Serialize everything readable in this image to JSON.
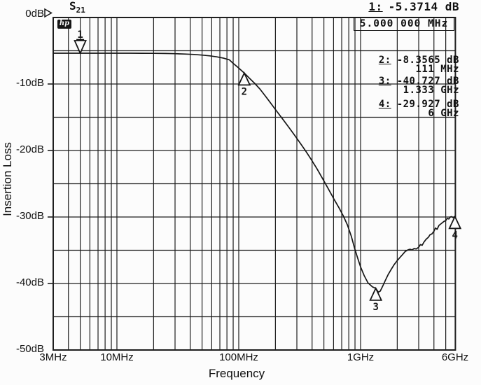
{
  "title": {
    "s_param": "S",
    "s_param_sub": "21"
  },
  "logo_text": "hp",
  "axes": {
    "y_title": "Insertion Loss",
    "x_title": "Frequency",
    "y_ticks": [
      "0dB",
      "-10dB",
      "-20dB",
      "-30dB",
      "-40dB",
      "-50dB"
    ],
    "x_ticks": [
      "3MHz",
      "10MHz",
      "100MHz",
      "1GHz",
      "6GHz"
    ]
  },
  "readout": {
    "active": {
      "id": "1:",
      "value": "-5.3714 dB",
      "stimulus": "5.000 000 MHz"
    },
    "markers": [
      {
        "id": "2:",
        "value": "-8.3565 dB",
        "freq": "111 MHz"
      },
      {
        "id": "3:",
        "value": "-40.727 dB",
        "freq": "1.333 GHz"
      },
      {
        "id": "4:",
        "value": "-29.927 dB",
        "freq": "6 GHz"
      }
    ]
  },
  "chart_data": {
    "type": "line",
    "title": "S21 Insertion Loss vs Frequency",
    "xlabel": "Frequency",
    "ylabel": "Insertion Loss",
    "x_scale": "log",
    "x_range_mhz": [
      3,
      6000
    ],
    "y_range_db": [
      -50,
      0
    ],
    "y_grid_step_db": 5,
    "grid_freqs_mhz": [
      4,
      5,
      6,
      7,
      8,
      9,
      10,
      20,
      30,
      40,
      50,
      60,
      70,
      80,
      90,
      100,
      200,
      300,
      400,
      500,
      600,
      700,
      800,
      900,
      1000,
      2000,
      3000,
      4000,
      5000
    ],
    "grid_levels_db": [
      -5,
      -10,
      -15,
      -20,
      -25,
      -30,
      -35,
      -40,
      -45
    ],
    "labeled_levels_db": [
      -10,
      -20,
      -30,
      -40
    ],
    "series": [
      {
        "name": "S21",
        "points_mhz_db": [
          [
            3,
            -5.37
          ],
          [
            4,
            -5.37
          ],
          [
            5,
            -5.3714
          ],
          [
            6.5,
            -5.37
          ],
          [
            8,
            -5.37
          ],
          [
            10,
            -5.37
          ],
          [
            13,
            -5.37
          ],
          [
            16,
            -5.38
          ],
          [
            20,
            -5.39
          ],
          [
            25,
            -5.41
          ],
          [
            30,
            -5.44
          ],
          [
            36,
            -5.49
          ],
          [
            43,
            -5.56
          ],
          [
            50,
            -5.65
          ],
          [
            58,
            -5.77
          ],
          [
            66,
            -5.92
          ],
          [
            75,
            -6.12
          ],
          [
            84,
            -6.38
          ],
          [
            90,
            -6.9
          ],
          [
            100,
            -7.6
          ],
          [
            111,
            -8.3565
          ],
          [
            122,
            -9.1
          ],
          [
            135,
            -9.9
          ],
          [
            150,
            -10.8
          ],
          [
            167,
            -11.9
          ],
          [
            185,
            -13.0
          ],
          [
            205,
            -14.1
          ],
          [
            230,
            -15.3
          ],
          [
            255,
            -16.4
          ],
          [
            285,
            -17.6
          ],
          [
            320,
            -18.9
          ],
          [
            355,
            -20.1
          ],
          [
            395,
            -21.4
          ],
          [
            440,
            -22.8
          ],
          [
            490,
            -24.3
          ],
          [
            545,
            -25.8
          ],
          [
            600,
            -27.2
          ],
          [
            660,
            -28.5
          ],
          [
            720,
            -29.8
          ],
          [
            780,
            -31.2
          ],
          [
            840,
            -32.9
          ],
          [
            890,
            -34.6
          ],
          [
            940,
            -36.0
          ],
          [
            1000,
            -37.5
          ],
          [
            1070,
            -38.8
          ],
          [
            1150,
            -39.9
          ],
          [
            1250,
            -40.5
          ],
          [
            1333,
            -40.727
          ],
          [
            1400,
            -41.3
          ],
          [
            1450,
            -41.15
          ],
          [
            1520,
            -40.4
          ],
          [
            1600,
            -39.5
          ],
          [
            1680,
            -38.7
          ],
          [
            1780,
            -37.9
          ],
          [
            1880,
            -37.2
          ],
          [
            1990,
            -36.6
          ],
          [
            2100,
            -36.1
          ],
          [
            2200,
            -35.7
          ],
          [
            2320,
            -35.2
          ],
          [
            2450,
            -34.95
          ],
          [
            2550,
            -34.85
          ],
          [
            2650,
            -34.95
          ],
          [
            2750,
            -34.75
          ],
          [
            2870,
            -34.8
          ],
          [
            3000,
            -34.55
          ],
          [
            3100,
            -34.15
          ],
          [
            3200,
            -34.25
          ],
          [
            3320,
            -33.75
          ],
          [
            3450,
            -33.35
          ],
          [
            3600,
            -33.05
          ],
          [
            3720,
            -32.65
          ],
          [
            3850,
            -32.55
          ],
          [
            4000,
            -32.15
          ],
          [
            4120,
            -31.65
          ],
          [
            4250,
            -31.85
          ],
          [
            4400,
            -31.25
          ],
          [
            4550,
            -31.05
          ],
          [
            4700,
            -30.85
          ],
          [
            4850,
            -30.65
          ],
          [
            5000,
            -30.55
          ],
          [
            5150,
            -30.2
          ],
          [
            5300,
            -30.3
          ],
          [
            5450,
            -30.0
          ],
          [
            5600,
            -29.95
          ],
          [
            5750,
            -30.1
          ],
          [
            5900,
            -29.95
          ],
          [
            6000,
            -29.927
          ]
        ]
      }
    ],
    "markers": [
      {
        "n": "1",
        "freq_mhz": 5,
        "db": -5.3714,
        "orient": "down",
        "active": true
      },
      {
        "n": "2",
        "freq_mhz": 111,
        "db": -8.3565,
        "orient": "up",
        "active": false
      },
      {
        "n": "3",
        "freq_mhz": 1333,
        "db": -40.727,
        "orient": "up",
        "active": false
      },
      {
        "n": "4",
        "freq_mhz": 5950,
        "db": -29.927,
        "orient": "up",
        "active": false
      }
    ],
    "legend": "none",
    "colors": {
      "trace": "#161616",
      "grid": "#1e1e1e",
      "background": "#fcfcfc"
    }
  }
}
